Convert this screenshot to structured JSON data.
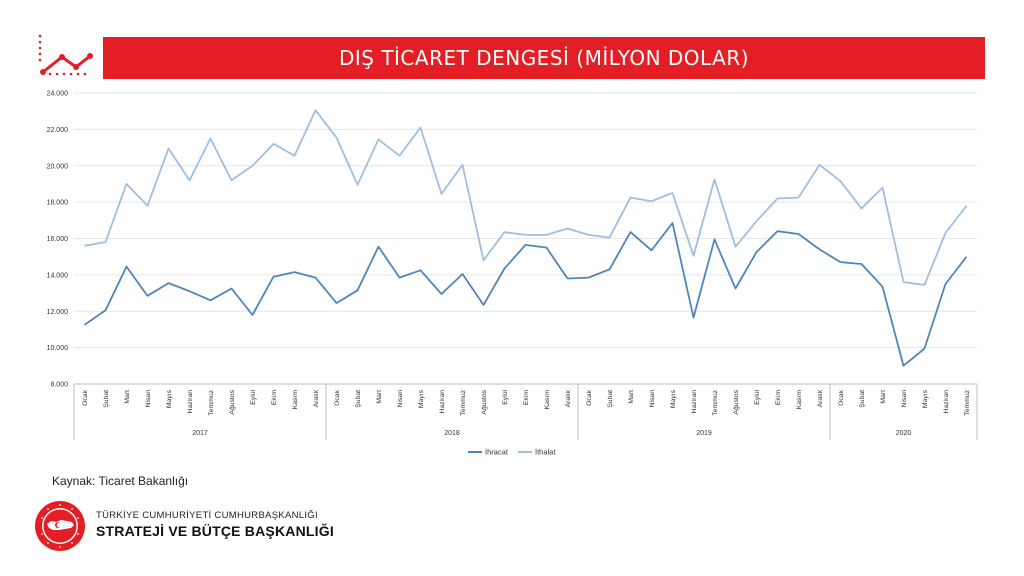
{
  "header": {
    "title": "DIŞ TİCARET DENGESİ (MİLYON DOLAR)",
    "icon": "rising-line-chart-icon"
  },
  "source": "Kaynak: Ticaret Bakanlığı",
  "org": {
    "line1": "TÜRKİYE CUMHURİYETİ CUMHURBAŞKANLIĞI",
    "line2": "STRATEJİ VE BÜTÇE BAŞKANLIĞI",
    "seal_icon": "turkey-map-seal-icon"
  },
  "colors": {
    "accent": "#e31e24",
    "ihracat": "#4f86b9",
    "ithalat": "#9dbfe0"
  },
  "chart_data": {
    "type": "line",
    "title": "",
    "xlabel": "",
    "ylabel": "",
    "ylim": [
      8000,
      24000
    ],
    "yticks": [
      "8.000",
      "10.000",
      "12.000",
      "14.000",
      "16.000",
      "18.000",
      "20.000",
      "22.000",
      "24.000"
    ],
    "grid": true,
    "legend": "bottom",
    "months": [
      "Ocak",
      "Şubat",
      "Mart",
      "Nisan",
      "Mayıs",
      "Haziran",
      "Temmuz",
      "Ağustos",
      "Eylül",
      "Ekim",
      "Kasım",
      "Aralık"
    ],
    "year_groups": [
      {
        "label": "2017",
        "count": 12
      },
      {
        "label": "2018",
        "count": 12
      },
      {
        "label": "2019",
        "count": 12
      },
      {
        "label": "2020",
        "count": 7
      }
    ],
    "series": [
      {
        "name": "İhracat",
        "values": [
          11250,
          12050,
          14450,
          12850,
          13550,
          13100,
          12600,
          13250,
          11800,
          13900,
          14150,
          13850,
          12450,
          13150,
          15550,
          13850,
          14250,
          12950,
          14050,
          12350,
          14350,
          15650,
          15500,
          13800,
          13850,
          14300,
          16350,
          15350,
          16850,
          11650,
          15950,
          13250,
          15250,
          16400,
          16250,
          15400,
          14700,
          14600,
          13350,
          9000,
          9950,
          13500,
          15000
        ]
      },
      {
        "name": "İthalat",
        "values": [
          15600,
          15800,
          19000,
          17800,
          20950,
          19200,
          21500,
          19200,
          20000,
          21200,
          20550,
          23050,
          21550,
          18950,
          21450,
          20550,
          22100,
          18450,
          20050,
          14800,
          16350,
          16200,
          16200,
          16550,
          16200,
          16050,
          18250,
          18050,
          18500,
          15050,
          19250,
          15550,
          16950,
          18200,
          18250,
          20050,
          19150,
          17650,
          18800,
          13600,
          13450,
          16300,
          17800
        ]
      }
    ]
  }
}
